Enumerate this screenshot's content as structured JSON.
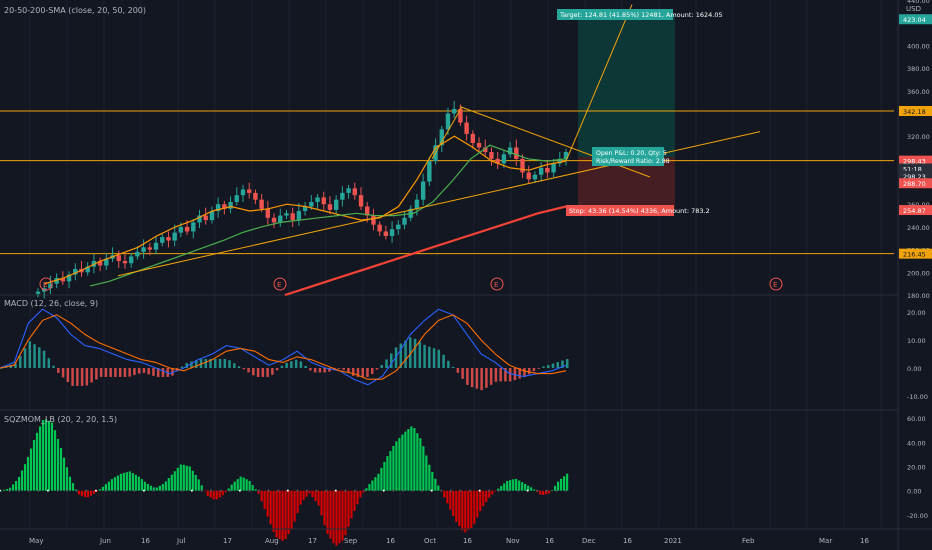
{
  "symbol": "",
  "indicators": {
    "sma_label": "20-50-200-SMA (close, 20, 50, 200)",
    "macd_label": "MACD (12, 26, close, 9)",
    "sqz_label": "SQZMOM_LB (20, 2, 20, 1.5)"
  },
  "currency": "USD",
  "colors": {
    "background": "#131722",
    "grid": "#1e222d",
    "up": "#26a69a",
    "down": "#ef5350",
    "sma20": "#ff9800",
    "sma50": "#4caf50",
    "sma200": "#f44336",
    "level": "#f0a30a",
    "macd": "#2962ff",
    "signal": "#ff6d00",
    "sqz_up": "#00c853",
    "sqz_down": "#d50000",
    "target_zone": "#0d3b3a",
    "stop_zone": "#4a1f24",
    "price_badge": "#26a69a",
    "price_badge_red": "#ef5350"
  },
  "time_axis": {
    "labels": [
      "May",
      "Jun",
      "16",
      "Jul",
      "17",
      "Aug",
      "17",
      "Sep",
      "16",
      "Oct",
      "16",
      "Nov",
      "16",
      "Dec",
      "16",
      "2021",
      "Feb",
      "Mar",
      "16"
    ]
  },
  "price_axis": {
    "labels": [
      "440.00",
      "400.00",
      "380.00",
      "360.00",
      "320.00",
      "300.00",
      "260.00",
      "240.00",
      "220.00",
      "200.00",
      "180.00"
    ],
    "badges": [
      "423.04",
      "342.18",
      "298.43",
      "51:18",
      "298.23",
      "288.70",
      "254.87",
      "216.45"
    ]
  },
  "macd_axis": {
    "labels": [
      "20.00",
      "10.00",
      "0.00",
      "-10.00"
    ]
  },
  "sqz_axis": {
    "labels": [
      "60.00",
      "40.00",
      "20.00",
      "0.00",
      "-20.00"
    ]
  },
  "position": {
    "target_label": "Target: 124.81 (41.85%) 12481, Amount: 1624.05",
    "open_pl_label": "Open P&L: 0.20, Qty: 5",
    "rr_label": "Risk/Reward Ratio: 2.88",
    "stop_label": "Stop: 43.36 (14.54%) 4336, Amount: 783.2"
  },
  "earnings_marker": "E",
  "chart_data": {
    "type": "candlestick",
    "title": "",
    "y_range": [
      180,
      440
    ],
    "horizontal_levels": [
      342.18,
      298.43,
      216.45
    ],
    "close": [
      183,
      186,
      190,
      195,
      192,
      198,
      203,
      200,
      205,
      210,
      206,
      212,
      215,
      210,
      208,
      214,
      218,
      222,
      220,
      226,
      231,
      228,
      235,
      240,
      236,
      244,
      250,
      246,
      254,
      260,
      256,
      262,
      268,
      273,
      270,
      264,
      256,
      248,
      244,
      250,
      252,
      246,
      254,
      258,
      262,
      266,
      260,
      255,
      264,
      270,
      274,
      268,
      258,
      250,
      242,
      236,
      232,
      238,
      242,
      248,
      256,
      264,
      280,
      298,
      312,
      326,
      340,
      344,
      332,
      322,
      314,
      310,
      306,
      300,
      296,
      304,
      310,
      300,
      288,
      282,
      286,
      292,
      288,
      296,
      300,
      306
    ],
    "sma20_samples": [
      190,
      195,
      202,
      210,
      216,
      222,
      232,
      240,
      246,
      254,
      258,
      254,
      256,
      260,
      258,
      254,
      250,
      246,
      248,
      258,
      282,
      310,
      320,
      310,
      298,
      292,
      290,
      295,
      298
    ],
    "sma50_samples": [
      188,
      192,
      198,
      204,
      210,
      216,
      222,
      228,
      235,
      240,
      244,
      246,
      248,
      250,
      252,
      250,
      250,
      252,
      262,
      280,
      300,
      312,
      306,
      300,
      298,
      300
    ],
    "sma200_samples": [
      180,
      188,
      196,
      204,
      212,
      220,
      228,
      236,
      244,
      252,
      258
    ],
    "trendlines": [
      "support rising wedge",
      "descending resistance from Oct high"
    ],
    "macd": {
      "macd_samples": [
        0,
        2,
        16,
        21,
        18,
        12,
        8,
        7,
        5,
        3,
        2,
        0,
        -2,
        0,
        3,
        5,
        8,
        7,
        4,
        1,
        3,
        6,
        2,
        0,
        -1,
        -4,
        -6,
        -3,
        4,
        12,
        17,
        21,
        19,
        12,
        5,
        2,
        -2,
        -3,
        -2,
        -1,
        1
      ],
      "signal_samples": [
        0,
        1,
        10,
        17,
        19,
        16,
        12,
        9,
        7,
        5,
        3,
        2,
        0,
        -1,
        1,
        3,
        6,
        7,
        6,
        3,
        2,
        4,
        3,
        1,
        -1,
        -2,
        -4,
        -4,
        -1,
        5,
        12,
        17,
        19,
        16,
        10,
        5,
        1,
        -1,
        -2,
        -2,
        -1
      ],
      "y_range": [
        -15,
        25
      ]
    },
    "squeeze_momentum": {
      "samples": [
        0,
        2,
        10,
        25,
        45,
        60,
        56,
        35,
        12,
        -3,
        -6,
        -2,
        4,
        10,
        14,
        16,
        12,
        6,
        2,
        6,
        14,
        22,
        20,
        10,
        -4,
        -8,
        -3,
        6,
        12,
        8,
        -2,
        -20,
        -38,
        -42,
        -30,
        -10,
        -2,
        -12,
        -35,
        -46,
        -40,
        -20,
        -4,
        6,
        14,
        28,
        40,
        48,
        54,
        42,
        20,
        4,
        -10,
        -25,
        -35,
        -30,
        -15,
        -5,
        2,
        8,
        10,
        6,
        2,
        -4,
        -2,
        8,
        14
      ],
      "y_range": [
        -30,
        65
      ]
    }
  }
}
